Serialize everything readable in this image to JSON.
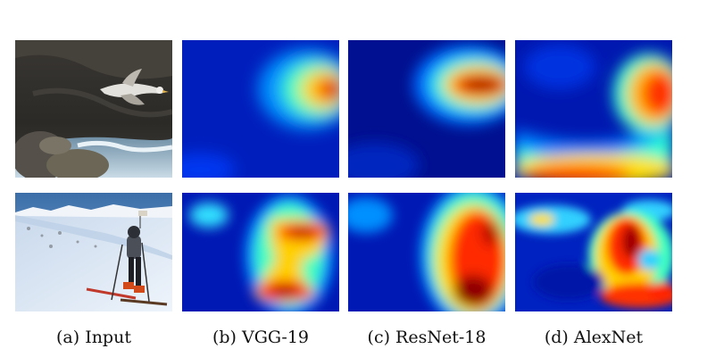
{
  "captions": [
    "(a) Input",
    "(b) VGG-19",
    "(c) ResNet-18",
    "(d) AlexNet"
  ],
  "rows": [
    {
      "input_subject": "seagull-in-flight-over-rocky-coast"
    },
    {
      "input_subject": "skier-on-snowy-slope"
    }
  ],
  "colormap": "jet"
}
